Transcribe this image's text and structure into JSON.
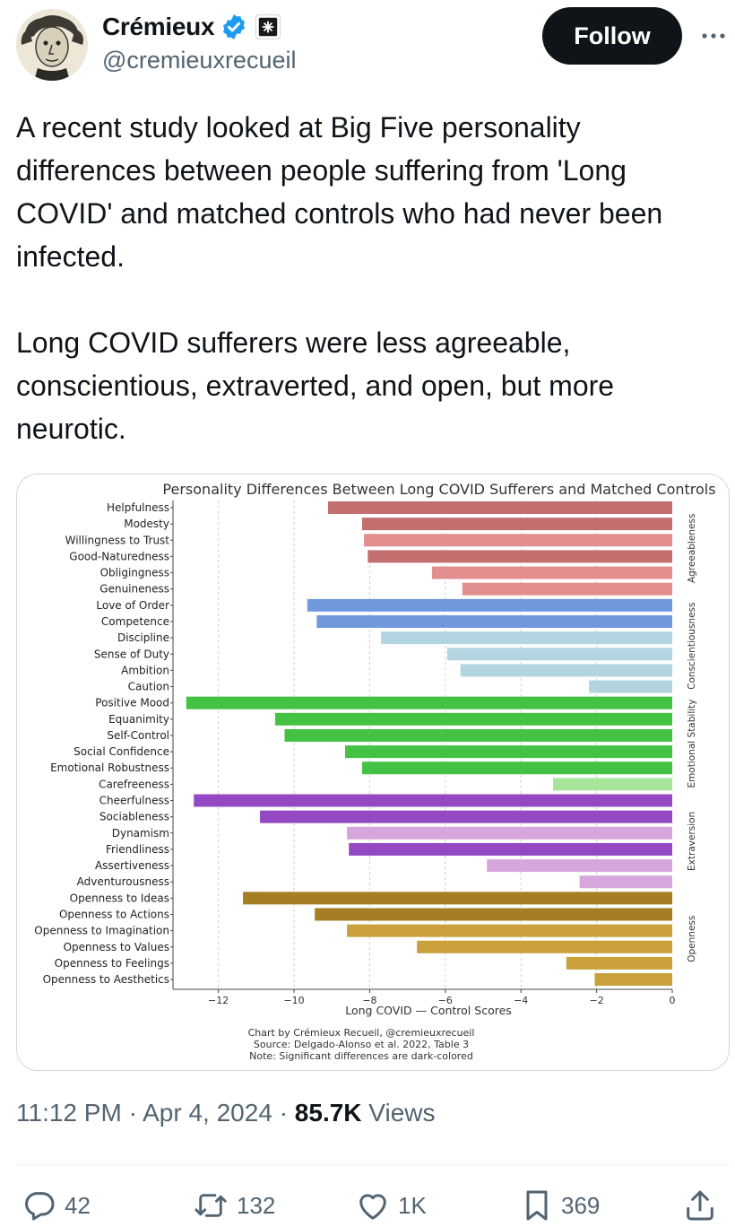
{
  "author": {
    "name": "Crémieux",
    "handle": "@cremieuxrecueil",
    "follow_label": "Follow"
  },
  "tweet": {
    "paragraphs": [
      "A recent study looked at Big Five personality differences between people suffering from 'Long COVID' and matched controls who had never been infected.",
      "Long COVID sufferers were less agreeable, conscientious, extraverted, and open, but more neurotic."
    ],
    "time": "11:12 PM",
    "date": "Apr 4, 2024",
    "views_count": "85.7K",
    "views_label": "Views"
  },
  "actions": {
    "replies": "42",
    "reposts": "132",
    "likes": "1K",
    "bookmarks": "369"
  },
  "chart_data": {
    "type": "bar",
    "orientation": "horizontal",
    "title": "Personality Differences Between Long COVID Sufferers and Matched Controls",
    "xlabel": "Long COVID — Control Scores",
    "xlim": [
      -13.2,
      0
    ],
    "xticks": [
      "−12",
      "−10",
      "−8",
      "−6",
      "−4",
      "−2",
      "0"
    ],
    "xtick_values": [
      -12,
      -10,
      -8,
      -6,
      -4,
      -2,
      0
    ],
    "grid": "vertical dashed",
    "footnotes": [
      "Chart by Crémieux Recueil, @cremieuxrecueil",
      "Source: Delgado-Alonso et al. 2022, Table 3",
      "Note: Significant differences are dark-colored"
    ],
    "groups": [
      {
        "name": "Agreeableness",
        "start": 0,
        "end": 5
      },
      {
        "name": "Conscientiousness",
        "start": 6,
        "end": 11
      },
      {
        "name": "Emotional Stability",
        "start": 12,
        "end": 17
      },
      {
        "name": "Extraversion",
        "start": 18,
        "end": 23
      },
      {
        "name": "Openness",
        "start": 24,
        "end": 29
      }
    ],
    "bars": [
      {
        "label": "Helpfulness",
        "value": -9.1,
        "color": "#c46f6f"
      },
      {
        "label": "Modesty",
        "value": -8.2,
        "color": "#c46f6f"
      },
      {
        "label": "Willingness to Trust",
        "value": -8.15,
        "color": "#e38e8e"
      },
      {
        "label": "Good-Naturedness",
        "value": -8.05,
        "color": "#c46f6f"
      },
      {
        "label": "Obligingness",
        "value": -6.35,
        "color": "#e38e8e"
      },
      {
        "label": "Genuineness",
        "value": -5.55,
        "color": "#e38e8e"
      },
      {
        "label": "Love of Order",
        "value": -9.65,
        "color": "#6f98dd"
      },
      {
        "label": "Competence",
        "value": -9.4,
        "color": "#6f98dd"
      },
      {
        "label": "Discipline",
        "value": -7.7,
        "color": "#b3d5e2"
      },
      {
        "label": "Sense of Duty",
        "value": -5.95,
        "color": "#b3d5e2"
      },
      {
        "label": "Ambition",
        "value": -5.6,
        "color": "#b3d5e2"
      },
      {
        "label": "Caution",
        "value": -2.2,
        "color": "#b3d5e2"
      },
      {
        "label": "Positive Mood",
        "value": -12.85,
        "color": "#44c244"
      },
      {
        "label": "Equanimity",
        "value": -10.5,
        "color": "#44c244"
      },
      {
        "label": "Self-Control",
        "value": -10.25,
        "color": "#44c244"
      },
      {
        "label": "Social Confidence",
        "value": -8.65,
        "color": "#44c244"
      },
      {
        "label": "Emotional Robustness",
        "value": -8.2,
        "color": "#44c244"
      },
      {
        "label": "Carefreeness",
        "value": -3.15,
        "color": "#a7e59b"
      },
      {
        "label": "Cheerfulness",
        "value": -12.65,
        "color": "#9448c4"
      },
      {
        "label": "Sociableness",
        "value": -10.9,
        "color": "#9448c4"
      },
      {
        "label": "Dynamism",
        "value": -8.6,
        "color": "#d7a6dc"
      },
      {
        "label": "Friendliness",
        "value": -8.55,
        "color": "#9448c4"
      },
      {
        "label": "Assertiveness",
        "value": -4.9,
        "color": "#d7a6dc"
      },
      {
        "label": "Adventurousness",
        "value": -2.45,
        "color": "#d7a6dc"
      },
      {
        "label": "Openness to Ideas",
        "value": -11.35,
        "color": "#a57d22"
      },
      {
        "label": "Openness to Actions",
        "value": -9.45,
        "color": "#a57d22"
      },
      {
        "label": "Openness to Imagination",
        "value": -8.6,
        "color": "#c9a03a"
      },
      {
        "label": "Openness to Values",
        "value": -6.75,
        "color": "#c9a03a"
      },
      {
        "label": "Openness to Feelings",
        "value": -2.8,
        "color": "#c9a03a"
      },
      {
        "label": "Openness to Aesthetics",
        "value": -2.05,
        "color": "#c9a03a"
      }
    ]
  },
  "colors": {
    "accent": "#1d9bf0",
    "text": "#0f1419",
    "muted": "#536471",
    "border": "#cfd9de"
  }
}
